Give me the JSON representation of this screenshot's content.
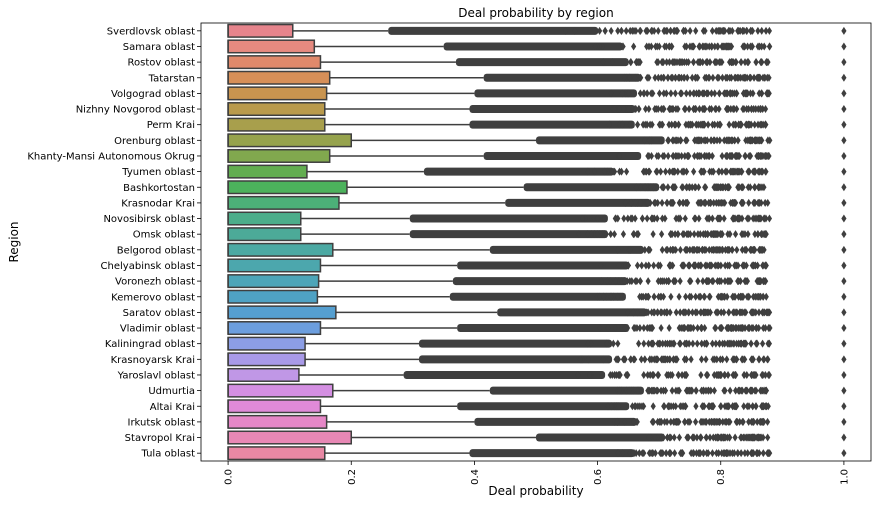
{
  "chart_data": {
    "type": "box",
    "orientation": "horizontal",
    "title": "Deal probability by region",
    "xlabel": "Deal probability",
    "ylabel": "Region",
    "xlim": [
      -0.044,
      1.044
    ],
    "x_ticks": [
      "0.0",
      "0.2",
      "0.4",
      "0.6",
      "0.8",
      "1.0"
    ],
    "x_tick_values": [
      0.0,
      0.2,
      0.4,
      0.6,
      0.8,
      1.0
    ],
    "legend": "none",
    "grid": false,
    "series": [
      {
        "name": "Sverdlovsk oblast",
        "q1": 0.0,
        "q3": 0.105,
        "whisker_high": 0.26,
        "outlier_start": 0.26,
        "outlier_end": 0.88,
        "color": "#e6848c"
      },
      {
        "name": "Samara oblast",
        "q1": 0.0,
        "q3": 0.14,
        "whisker_high": 0.35,
        "outlier_start": 0.35,
        "outlier_end": 0.88,
        "color": "#e68a80"
      },
      {
        "name": "Rostov oblast",
        "q1": 0.0,
        "q3": 0.15,
        "whisker_high": 0.37,
        "outlier_start": 0.37,
        "outlier_end": 0.88,
        "color": "#e0896b"
      },
      {
        "name": "Tatarstan",
        "q1": 0.0,
        "q3": 0.165,
        "whisker_high": 0.415,
        "outlier_start": 0.415,
        "outlier_end": 0.88,
        "color": "#d68f58"
      },
      {
        "name": "Volgograd oblast",
        "q1": 0.0,
        "q3": 0.16,
        "whisker_high": 0.4,
        "outlier_start": 0.4,
        "outlier_end": 0.88,
        "color": "#c9944f"
      },
      {
        "name": "Nizhny Novgorod oblast",
        "q1": 0.0,
        "q3": 0.157,
        "whisker_high": 0.392,
        "outlier_start": 0.392,
        "outlier_end": 0.88,
        "color": "#b99a4c"
      },
      {
        "name": "Perm Krai",
        "q1": 0.0,
        "q3": 0.157,
        "whisker_high": 0.392,
        "outlier_start": 0.392,
        "outlier_end": 0.88,
        "color": "#a89f4c"
      },
      {
        "name": "Orenburg oblast",
        "q1": 0.0,
        "q3": 0.2,
        "whisker_high": 0.5,
        "outlier_start": 0.5,
        "outlier_end": 0.88,
        "color": "#96a34d"
      },
      {
        "name": "Khanty-Mansi Autonomous Okrug",
        "q1": 0.0,
        "q3": 0.165,
        "whisker_high": 0.415,
        "outlier_start": 0.415,
        "outlier_end": 0.88,
        "color": "#81a84e"
      },
      {
        "name": "Tyumen oblast",
        "q1": 0.0,
        "q3": 0.128,
        "whisker_high": 0.318,
        "outlier_start": 0.318,
        "outlier_end": 0.88,
        "color": "#62ad50"
      },
      {
        "name": "Bashkortostan",
        "q1": 0.0,
        "q3": 0.193,
        "whisker_high": 0.48,
        "outlier_start": 0.48,
        "outlier_end": 0.88,
        "color": "#4cb25c"
      },
      {
        "name": "Krasnodar Krai",
        "q1": 0.0,
        "q3": 0.18,
        "whisker_high": 0.45,
        "outlier_start": 0.45,
        "outlier_end": 0.88,
        "color": "#4cb078"
      },
      {
        "name": "Novosibirsk oblast",
        "q1": 0.0,
        "q3": 0.118,
        "whisker_high": 0.295,
        "outlier_start": 0.295,
        "outlier_end": 0.88,
        "color": "#4cad8a"
      },
      {
        "name": "Omsk oblast",
        "q1": 0.0,
        "q3": 0.118,
        "whisker_high": 0.295,
        "outlier_start": 0.295,
        "outlier_end": 0.88,
        "color": "#4caa98"
      },
      {
        "name": "Belgorod oblast",
        "q1": 0.0,
        "q3": 0.17,
        "whisker_high": 0.425,
        "outlier_start": 0.425,
        "outlier_end": 0.88,
        "color": "#4ca9a3"
      },
      {
        "name": "Chelyabinsk oblast",
        "q1": 0.0,
        "q3": 0.15,
        "whisker_high": 0.372,
        "outlier_start": 0.372,
        "outlier_end": 0.88,
        "color": "#4ca7ad"
      },
      {
        "name": "Voronezh oblast",
        "q1": 0.0,
        "q3": 0.147,
        "whisker_high": 0.365,
        "outlier_start": 0.365,
        "outlier_end": 0.88,
        "color": "#4da5b8"
      },
      {
        "name": "Kemerovo oblast",
        "q1": 0.0,
        "q3": 0.145,
        "whisker_high": 0.36,
        "outlier_start": 0.36,
        "outlier_end": 0.88,
        "color": "#4fa2c4"
      },
      {
        "name": "Saratov oblast",
        "q1": 0.0,
        "q3": 0.175,
        "whisker_high": 0.437,
        "outlier_start": 0.437,
        "outlier_end": 0.88,
        "color": "#559fd0"
      },
      {
        "name": "Vladimir oblast",
        "q1": 0.0,
        "q3": 0.15,
        "whisker_high": 0.372,
        "outlier_start": 0.372,
        "outlier_end": 0.88,
        "color": "#6c9ede"
      },
      {
        "name": "Kaliningrad oblast",
        "q1": 0.0,
        "q3": 0.125,
        "whisker_high": 0.31,
        "outlier_start": 0.31,
        "outlier_end": 0.88,
        "color": "#8c9ee6"
      },
      {
        "name": "Krasnoyarsk Krai",
        "q1": 0.0,
        "q3": 0.125,
        "whisker_high": 0.31,
        "outlier_start": 0.31,
        "outlier_end": 0.88,
        "color": "#a99ae8"
      },
      {
        "name": "Yaroslavl oblast",
        "q1": 0.0,
        "q3": 0.115,
        "whisker_high": 0.285,
        "outlier_start": 0.285,
        "outlier_end": 0.88,
        "color": "#c097e6"
      },
      {
        "name": "Udmurtia",
        "q1": 0.0,
        "q3": 0.17,
        "whisker_high": 0.425,
        "outlier_start": 0.425,
        "outlier_end": 0.88,
        "color": "#d48fe2"
      },
      {
        "name": "Altai Krai",
        "q1": 0.0,
        "q3": 0.15,
        "whisker_high": 0.372,
        "outlier_start": 0.372,
        "outlier_end": 0.88,
        "color": "#e08ad8"
      },
      {
        "name": "Irkutsk oblast",
        "q1": 0.0,
        "q3": 0.16,
        "whisker_high": 0.4,
        "outlier_start": 0.4,
        "outlier_end": 0.88,
        "color": "#e687c7"
      },
      {
        "name": "Stavropol Krai",
        "q1": 0.0,
        "q3": 0.2,
        "whisker_high": 0.5,
        "outlier_start": 0.5,
        "outlier_end": 0.88,
        "color": "#e888b5"
      },
      {
        "name": "Tula oblast",
        "q1": 0.0,
        "q3": 0.157,
        "whisker_high": 0.392,
        "outlier_start": 0.392,
        "outlier_end": 0.88,
        "color": "#e888a4"
      }
    ]
  }
}
